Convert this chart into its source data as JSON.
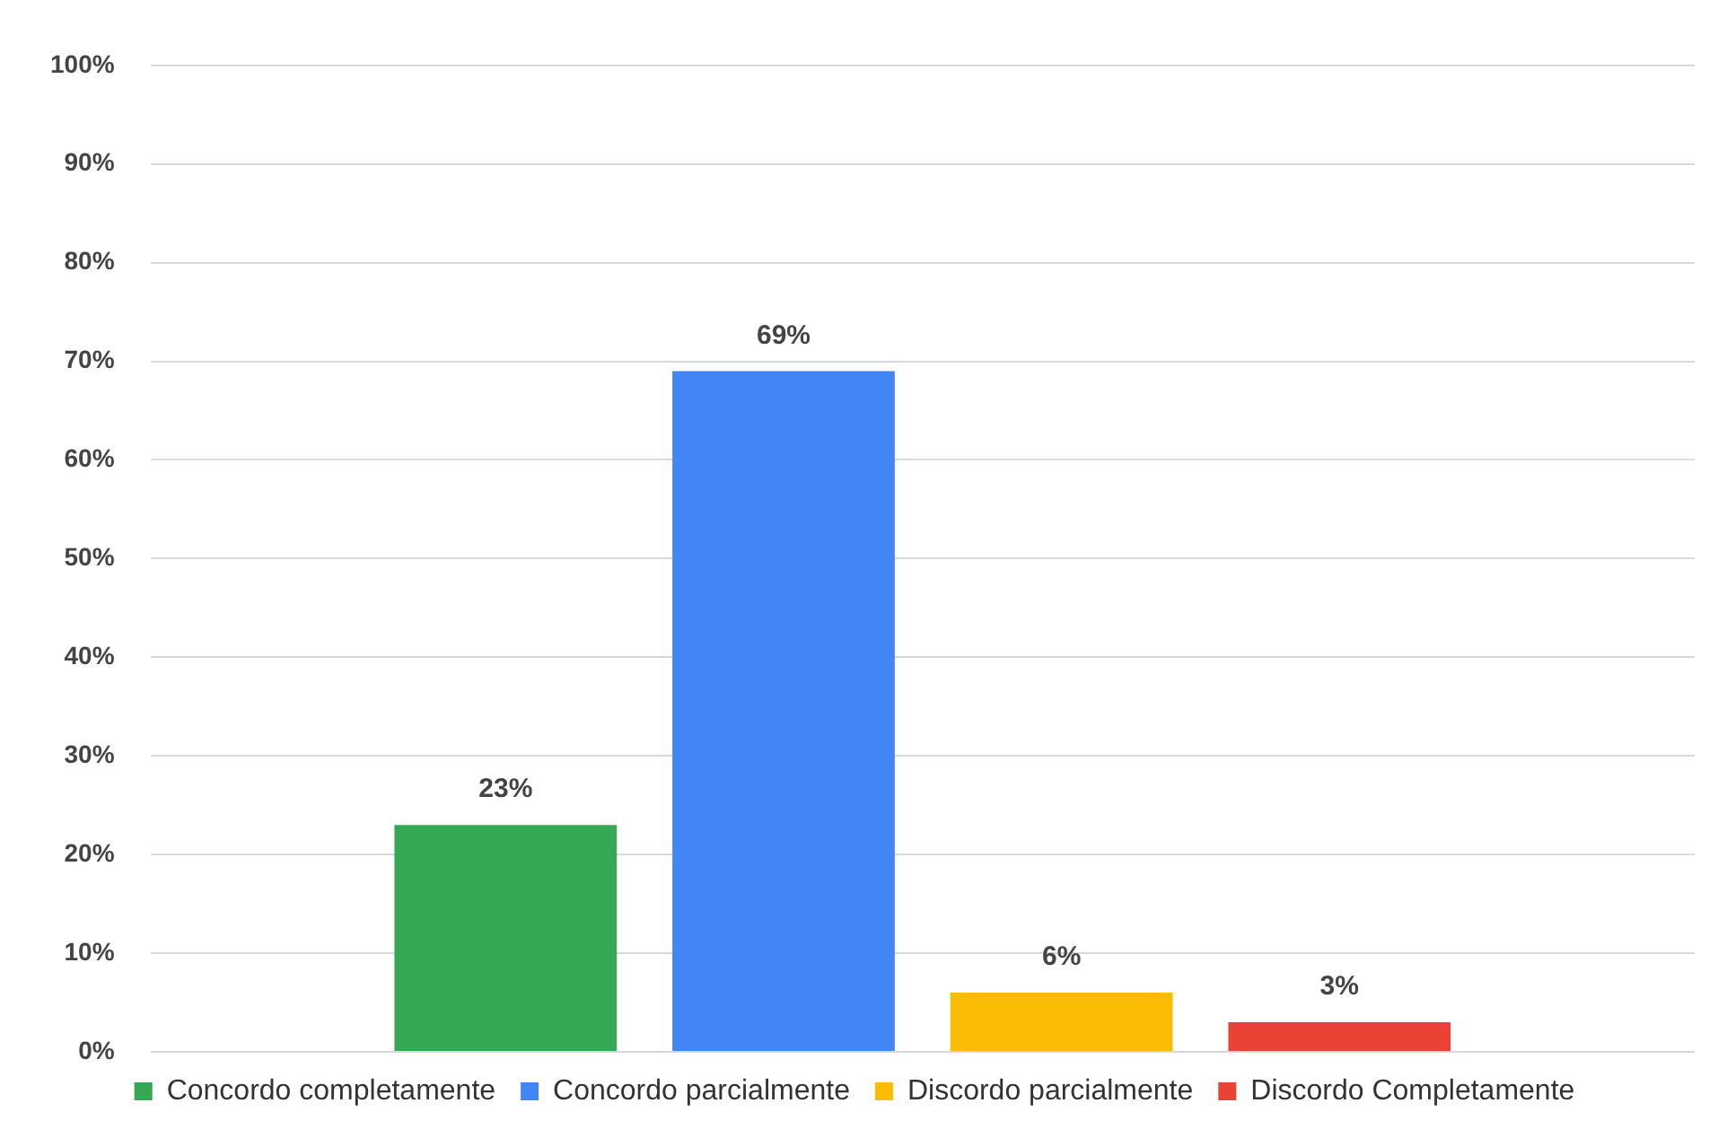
{
  "chart_data": {
    "type": "bar",
    "categories": [
      null
    ],
    "series": [
      {
        "name": "Concordo completamente",
        "color": "#34a853",
        "values": [
          23
        ],
        "value_labels": [
          "23%"
        ]
      },
      {
        "name": "Concordo parcialmente",
        "color": "#4285f4",
        "values": [
          69
        ],
        "value_labels": [
          "69%"
        ]
      },
      {
        "name": "Discordo parcialmente",
        "color": "#fbbc04",
        "values": [
          6
        ],
        "value_labels": [
          "6%"
        ]
      },
      {
        "name": "Discordo Completamente",
        "color": "#ea4335",
        "values": [
          3
        ],
        "value_labels": [
          "3%"
        ]
      }
    ],
    "ylim": [
      0,
      100
    ],
    "yticks": [
      {
        "value": 0,
        "label": "0%"
      },
      {
        "value": 10,
        "label": "10%"
      },
      {
        "value": 20,
        "label": "20%"
      },
      {
        "value": 30,
        "label": "30%"
      },
      {
        "value": 40,
        "label": "40%"
      },
      {
        "value": 50,
        "label": "50%"
      },
      {
        "value": 60,
        "label": "60%"
      },
      {
        "value": 70,
        "label": "70%"
      },
      {
        "value": 80,
        "label": "80%"
      },
      {
        "value": 90,
        "label": "90%"
      },
      {
        "value": 100,
        "label": "100%"
      }
    ],
    "grid": "y",
    "legend": "bottom"
  }
}
